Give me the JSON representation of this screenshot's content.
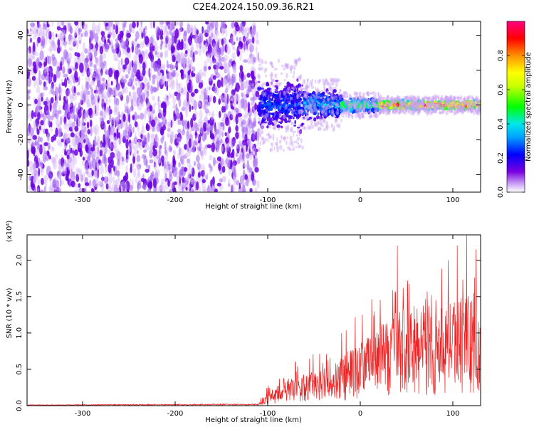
{
  "title": "C2E4.2024.150.09.36.R21",
  "colors": {
    "snr_line": "#ee2222",
    "colorbar": [
      "#ffffff",
      "#7a00e0",
      "#0000ff",
      "#00d7ff",
      "#00ff00",
      "#ffff00",
      "#ff8000",
      "#ff0000",
      "#ff0088"
    ]
  },
  "chart_data": [
    {
      "type": "heatmap",
      "xlabel": "Height of straight line (km)",
      "ylabel": "Frequency (Hz)",
      "xlim": [
        -360,
        130
      ],
      "ylim": [
        -50,
        48
      ],
      "xticks": [
        -300,
        -200,
        -100,
        0,
        100
      ],
      "yticks": [
        -40,
        -20,
        0,
        20,
        40
      ],
      "colorbar": {
        "label": "Normalized spectral amplitude",
        "range": [
          0,
          1
        ],
        "ticks": [
          "0.0",
          "0.2",
          "0.4",
          "0.6",
          "0.8"
        ]
      },
      "regions": [
        {
          "x": [
            -360,
            -110
          ],
          "freq": [
            -50,
            48
          ],
          "amplitude": 0.05,
          "pattern": "noise"
        },
        {
          "x": [
            -110,
            -60
          ],
          "freq": [
            -10,
            12
          ],
          "amplitude": 0.25
        },
        {
          "x": [
            -60,
            -20
          ],
          "freq": [
            -6,
            6
          ],
          "amplitude": 0.35
        },
        {
          "x": [
            -20,
            20
          ],
          "freq": [
            -3,
            3
          ],
          "amplitude": 0.5
        },
        {
          "x": [
            20,
            130
          ],
          "freq": [
            -2,
            2
          ],
          "amplitude": 0.85
        }
      ]
    },
    {
      "type": "line",
      "xlabel": "Height of straight line (km)",
      "ylabel": "SNR (10 * v/v)",
      "y_multiplier": "(x10⁴)",
      "xlim": [
        -360,
        130
      ],
      "ylim": [
        0,
        2.35
      ],
      "xticks": [
        -300,
        -200,
        -100,
        0,
        100
      ],
      "yticks": [
        "0.0",
        "0.5",
        "1.0",
        "1.5",
        "2.0"
      ],
      "envelope": [
        {
          "x": -360,
          "y": 0.01
        },
        {
          "x": -110,
          "y": 0.02
        },
        {
          "x": -100,
          "y": 0.12
        },
        {
          "x": -80,
          "y": 0.25
        },
        {
          "x": -60,
          "y": 0.3
        },
        {
          "x": -40,
          "y": 0.35
        },
        {
          "x": -20,
          "y": 0.45
        },
        {
          "x": 0,
          "y": 0.6
        },
        {
          "x": 20,
          "y": 0.75
        },
        {
          "x": 40,
          "y": 0.9
        },
        {
          "x": 60,
          "y": 0.95
        },
        {
          "x": 80,
          "y": 0.9
        },
        {
          "x": 100,
          "y": 1.0
        },
        {
          "x": 120,
          "y": 1.1
        },
        {
          "x": 130,
          "y": 1.0
        }
      ],
      "peaks": [
        {
          "x": -70,
          "y": 0.6
        },
        {
          "x": -20,
          "y": 1.0
        },
        {
          "x": 40,
          "y": 2.2
        },
        {
          "x": 95,
          "y": 2.0
        },
        {
          "x": 115,
          "y": 2.35
        },
        {
          "x": 125,
          "y": 2.15
        }
      ]
    }
  ]
}
